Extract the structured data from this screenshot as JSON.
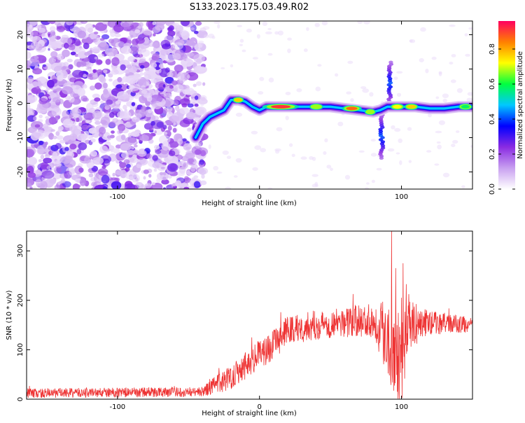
{
  "title": "S133.2023.175.03.49.R02",
  "chart_data": [
    {
      "type": "heatmap",
      "xlabel": "Height of straight line (km)",
      "ylabel": "Frequency (Hz)",
      "xlim": [
        -164,
        150
      ],
      "ylim": [
        -25,
        24
      ],
      "x_ticks": [
        -100,
        0,
        100
      ],
      "x_tick_labels": [
        "-100",
        "0",
        "100"
      ],
      "y_ticks": [
        -20,
        -10,
        0,
        10,
        20
      ],
      "y_tick_labels": [
        "-20",
        "-10",
        "0",
        "10",
        "20"
      ],
      "grid": false,
      "colorbar": {
        "label": "Normalized spectral amplitude",
        "range": [
          0,
          0.96
        ],
        "ticks": [
          0.0,
          0.2,
          0.4,
          0.6,
          0.8
        ],
        "tick_labels": [
          "0.0",
          "0.2",
          "0.4",
          "0.6",
          "0.8"
        ],
        "colors": [
          "#ffffff",
          "#c8a0f0",
          "#8a2be2",
          "#0000ff",
          "#00c8ff",
          "#00ff40",
          "#ffff00",
          "#ff8000",
          "#ff0060"
        ]
      },
      "noise_region_x": [
        -164,
        -45
      ],
      "ridge": [
        {
          "x": -45,
          "y": -10
        },
        {
          "x": -40,
          "y": -6
        },
        {
          "x": -35,
          "y": -4
        },
        {
          "x": -30,
          "y": -3
        },
        {
          "x": -25,
          "y": -2
        },
        {
          "x": -20,
          "y": 1
        },
        {
          "x": -15,
          "y": 1
        },
        {
          "x": -10,
          "y": 0.5
        },
        {
          "x": -5,
          "y": -1
        },
        {
          "x": 0,
          "y": -2
        },
        {
          "x": 5,
          "y": -1
        },
        {
          "x": 10,
          "y": -1
        },
        {
          "x": 20,
          "y": -1
        },
        {
          "x": 30,
          "y": -1
        },
        {
          "x": 40,
          "y": -1
        },
        {
          "x": 50,
          "y": -1
        },
        {
          "x": 60,
          "y": -1.5
        },
        {
          "x": 70,
          "y": -2
        },
        {
          "x": 80,
          "y": -2.5
        },
        {
          "x": 85,
          "y": -2
        },
        {
          "x": 90,
          "y": -1
        },
        {
          "x": 95,
          "y": -1
        },
        {
          "x": 100,
          "y": -1
        },
        {
          "x": 110,
          "y": -1
        },
        {
          "x": 120,
          "y": -1.5
        },
        {
          "x": 130,
          "y": -1.5
        },
        {
          "x": 140,
          "y": -1
        },
        {
          "x": 150,
          "y": -1
        }
      ],
      "hotspots": [
        {
          "x": 15,
          "y": -1,
          "w": 12,
          "level": 0.95
        },
        {
          "x": 40,
          "y": -1,
          "w": 4,
          "level": 0.7
        },
        {
          "x": 65,
          "y": -1.5,
          "w": 6,
          "level": 0.9
        },
        {
          "x": 78,
          "y": -2.5,
          "w": 3,
          "level": 0.7
        },
        {
          "x": -15,
          "y": 1,
          "w": 3,
          "level": 0.8
        },
        {
          "x": 97,
          "y": -1,
          "w": 4,
          "level": 0.75
        },
        {
          "x": 107,
          "y": -1,
          "w": 4,
          "level": 0.8
        },
        {
          "x": 145,
          "y": -1,
          "w": 4,
          "level": 0.6
        }
      ],
      "vertical_streaks": [
        {
          "x": 86,
          "y_from": -16,
          "y_to": -3
        },
        {
          "x": 92,
          "y_from": 0,
          "y_to": 12
        }
      ]
    },
    {
      "type": "line",
      "xlabel": "Height of straight line (km)",
      "ylabel": "SNR (10 * v/v)",
      "xlim": [
        -164,
        150
      ],
      "ylim": [
        0,
        340
      ],
      "x_ticks": [
        -100,
        0,
        100
      ],
      "x_tick_labels": [
        "-100",
        "0",
        "100"
      ],
      "y_ticks": [
        0,
        100,
        200,
        300
      ],
      "y_tick_labels": [
        "0",
        "100",
        "200",
        "300"
      ],
      "grid": false,
      "color": "#ee3333",
      "envelope": [
        {
          "x": -164,
          "mean": 12,
          "spread": 10
        },
        {
          "x": -40,
          "mean": 15,
          "spread": 10
        },
        {
          "x": -30,
          "mean": 30,
          "spread": 20
        },
        {
          "x": -20,
          "mean": 45,
          "spread": 25
        },
        {
          "x": -10,
          "mean": 70,
          "spread": 30
        },
        {
          "x": 0,
          "mean": 90,
          "spread": 30
        },
        {
          "x": 10,
          "mean": 110,
          "spread": 30
        },
        {
          "x": 20,
          "mean": 140,
          "spread": 30
        },
        {
          "x": 40,
          "mean": 150,
          "spread": 30
        },
        {
          "x": 60,
          "mean": 155,
          "spread": 30
        },
        {
          "x": 80,
          "mean": 160,
          "spread": 35
        },
        {
          "x": 90,
          "mean": 130,
          "spread": 80
        },
        {
          "x": 95,
          "mean": 100,
          "spread": 100
        },
        {
          "x": 100,
          "mean": 90,
          "spread": 100
        },
        {
          "x": 105,
          "mean": 150,
          "spread": 50
        },
        {
          "x": 120,
          "mean": 155,
          "spread": 25
        },
        {
          "x": 150,
          "mean": 150,
          "spread": 15
        }
      ],
      "peaks": [
        {
          "x": 93,
          "y": 340
        },
        {
          "x": 96,
          "y": 265
        },
        {
          "x": 101,
          "y": 275
        },
        {
          "x": 97,
          "y": 15
        }
      ]
    }
  ]
}
